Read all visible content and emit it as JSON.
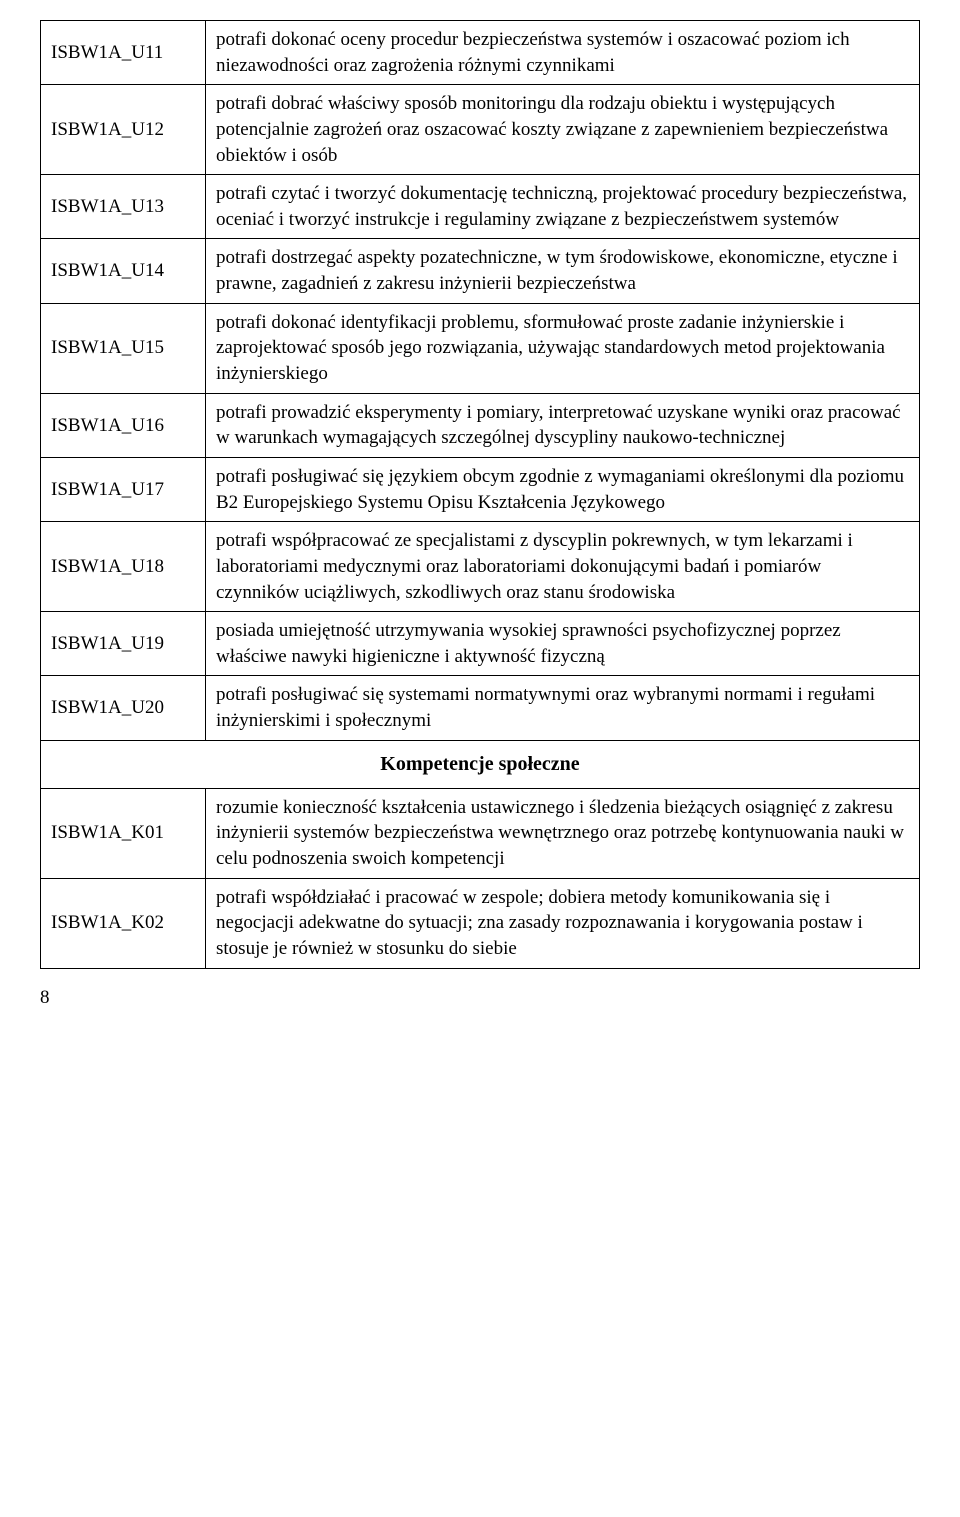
{
  "rows": [
    {
      "code": "ISBW1A_U11",
      "desc": "potrafi dokonać oceny procedur bezpieczeństwa systemów i oszacować poziom ich niezawodności oraz zagrożenia różnymi czynnikami"
    },
    {
      "code": "ISBW1A_U12",
      "desc": "potrafi dobrać właściwy sposób monitoringu dla rodzaju obiektu i występujących potencjalnie zagrożeń oraz oszacować koszty związane z zapewnieniem bezpieczeństwa obiektów i osób"
    },
    {
      "code": "ISBW1A_U13",
      "desc": "potrafi czytać i tworzyć dokumentację techniczną, projektować procedury bezpieczeństwa, oceniać i tworzyć instrukcje i regulaminy związane z bezpieczeństwem systemów"
    },
    {
      "code": "ISBW1A_U14",
      "desc": "potrafi dostrzegać aspekty pozatechniczne, w tym środowiskowe, ekonomiczne, etyczne i prawne, zagadnień z zakresu inżynierii bezpieczeństwa"
    },
    {
      "code": "ISBW1A_U15",
      "desc": "potrafi dokonać identyfikacji problemu, sformułować proste zadanie inżynierskie i zaprojektować sposób jego rozwiązania, używając standardowych metod projektowania inżynierskiego"
    },
    {
      "code": "ISBW1A_U16",
      "desc": "potrafi prowadzić eksperymenty i pomiary, interpretować uzyskane wyniki oraz pracować w warunkach wymagających szczególnej dyscypliny naukowo-technicznej"
    },
    {
      "code": "ISBW1A_U17",
      "desc": "potrafi posługiwać się językiem obcym zgodnie z wymaganiami określonymi dla poziomu B2 Europejskiego Systemu Opisu Kształcenia Językowego"
    },
    {
      "code": "ISBW1A_U18",
      "desc": "potrafi współpracować ze specjalistami z dyscyplin pokrewnych, w tym lekarzami i laboratoriami medycznymi oraz laboratoriami dokonującymi badań i pomiarów czynników uciążliwych, szkodliwych oraz stanu środowiska"
    },
    {
      "code": "ISBW1A_U19",
      "desc": "posiada umiejętność utrzymywania wysokiej sprawności psychofizycznej poprzez właściwe nawyki higieniczne i aktywność fizyczną"
    },
    {
      "code": "ISBW1A_U20",
      "desc": "potrafi posługiwać się systemami normatywnymi oraz wybranymi normami i regułami inżynierskimi i społecznymi"
    }
  ],
  "section_header": "Kompetencje społeczne",
  "rows2": [
    {
      "code": "ISBW1A_K01",
      "desc": "rozumie konieczność kształcenia ustawicznego i śledzenia bieżących osiągnięć z zakresu inżynierii systemów bezpieczeństwa wewnętrznego oraz potrzebę kontynuowania nauki w celu podnoszenia swoich kompetencji"
    },
    {
      "code": "ISBW1A_K02",
      "desc": "potrafi współdziałać i pracować w zespole; dobiera metody komunikowania się i negocjacji adekwatne do sytuacji; zna zasady rozpoznawania i korygowania postaw i stosuje je również w stosunku do siebie"
    }
  ],
  "page_number": "8"
}
